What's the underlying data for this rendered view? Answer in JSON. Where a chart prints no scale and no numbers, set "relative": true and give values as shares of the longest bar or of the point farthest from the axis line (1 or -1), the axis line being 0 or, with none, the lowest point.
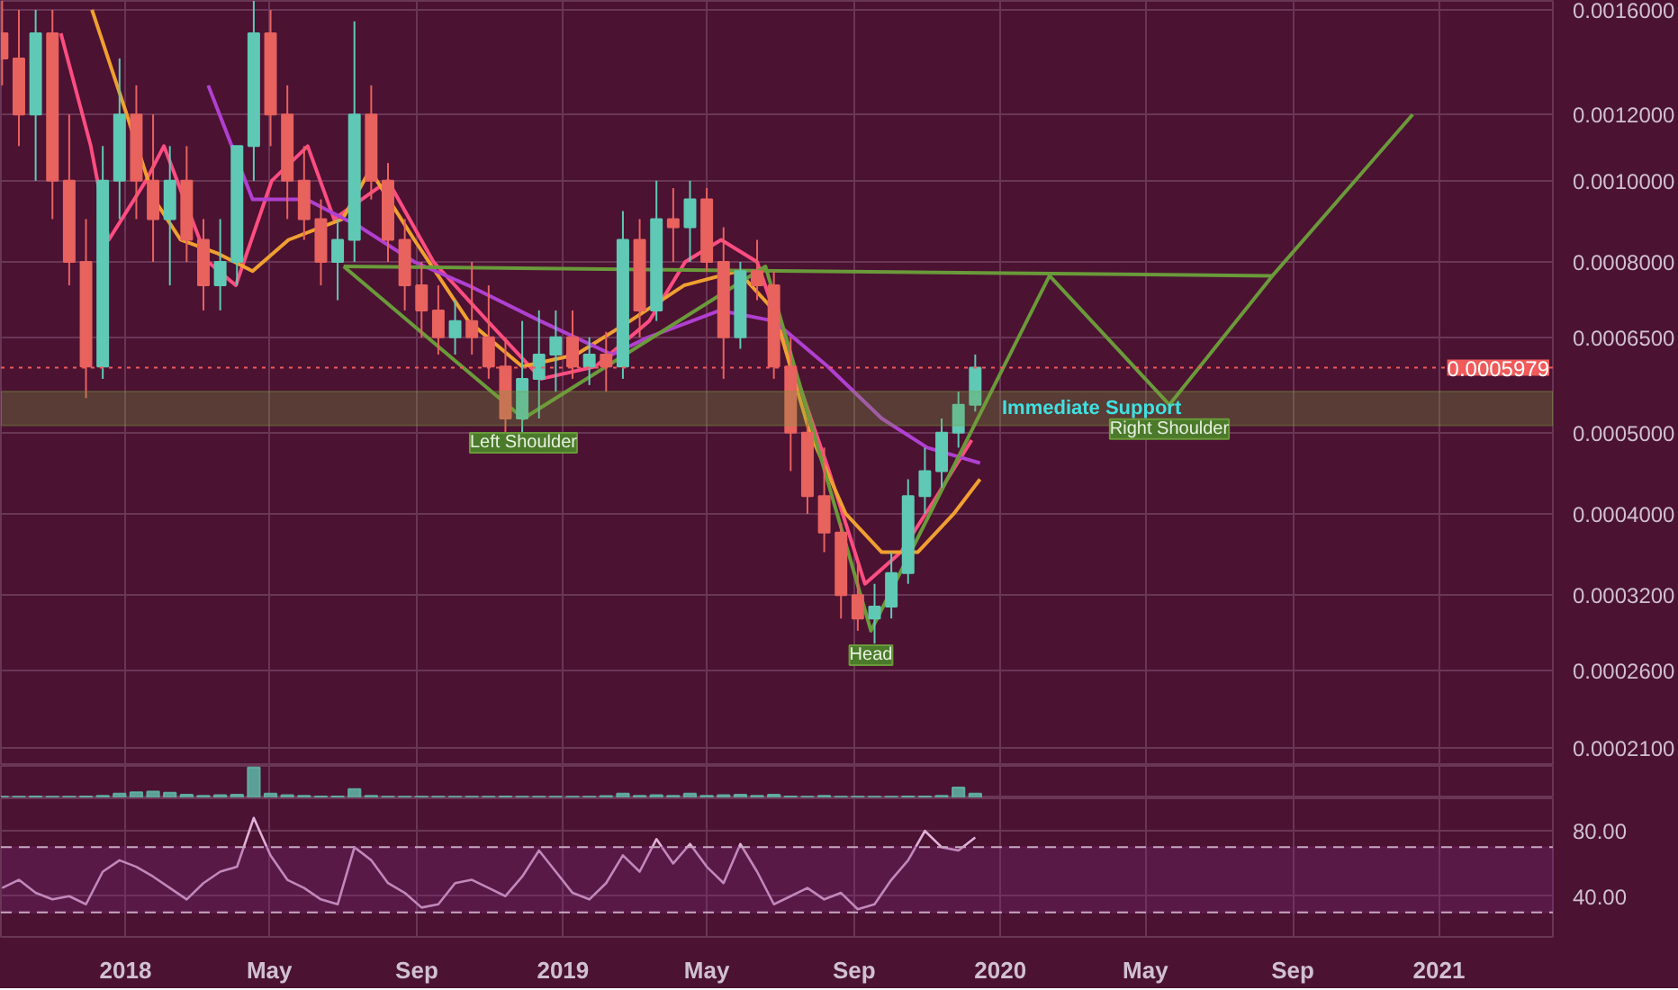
{
  "chart_data": [
    {
      "type": "candlestick",
      "log": true,
      "grid": true,
      "tick_labels": "y",
      "xlim": [
        "2017-09-19",
        "2021-04-06"
      ],
      "xticks": [
        {
          "value": "2018-01-01",
          "label": null
        },
        {
          "value": "2018-05-01",
          "label": null
        },
        {
          "value": "2018-09-01",
          "label": null
        },
        {
          "value": "2019-01-01",
          "label": null
        },
        {
          "value": "2019-05-01",
          "label": null
        },
        {
          "value": "2019-09-01",
          "label": null
        },
        {
          "value": "2020-01-01",
          "label": null
        },
        {
          "value": "2020-05-01",
          "label": null
        },
        {
          "value": "2020-09-01",
          "label": null
        },
        {
          "value": "2021-01-01",
          "label": null
        }
      ],
      "ylim": [
        0.0002,
        0.00164
      ],
      "yticks": [
        {
          "value": 0.0016,
          "label": "0.0016000"
        },
        {
          "value": 0.0012,
          "label": "0.0012000"
        },
        {
          "value": 0.001,
          "label": "0.0010000"
        },
        {
          "value": 0.0008,
          "label": "0.0008000"
        },
        {
          "value": 0.00065,
          "label": "0.0006500"
        },
        {
          "value": 0.0005,
          "label": "0.0005000"
        },
        {
          "value": 0.0004,
          "label": "0.0004000"
        },
        {
          "value": 0.00032,
          "label": "0.0003200"
        },
        {
          "value": 0.00026,
          "label": "0.0002600"
        },
        {
          "value": 0.00021,
          "label": "0.0002100"
        }
      ],
      "x": [
        "2017-09-20",
        "2017-10-04",
        "2017-10-18",
        "2017-11-01",
        "2017-11-15",
        "2017-11-29",
        "2017-12-13",
        "2017-12-27",
        "2018-01-10",
        "2018-01-24",
        "2018-02-07",
        "2018-02-21",
        "2018-03-07",
        "2018-03-21",
        "2018-04-04",
        "2018-04-18",
        "2018-05-02",
        "2018-05-16",
        "2018-05-30",
        "2018-06-13",
        "2018-06-27",
        "2018-07-11",
        "2018-07-25",
        "2018-08-08",
        "2018-08-22",
        "2018-09-05",
        "2018-09-19",
        "2018-10-03",
        "2018-10-17",
        "2018-10-31",
        "2018-11-14",
        "2018-11-28",
        "2018-12-12",
        "2018-12-26",
        "2019-01-09",
        "2019-01-23",
        "2019-02-06",
        "2019-02-20",
        "2019-03-06",
        "2019-03-20",
        "2019-04-03",
        "2019-04-17",
        "2019-05-01",
        "2019-05-15",
        "2019-05-29",
        "2019-06-12",
        "2019-06-26",
        "2019-07-10",
        "2019-07-24",
        "2019-08-07",
        "2019-08-21",
        "2019-09-04",
        "2019-09-18",
        "2019-10-02",
        "2019-10-16",
        "2019-10-30",
        "2019-11-13",
        "2019-11-27",
        "2019-12-11"
      ],
      "ohlc": [
        [
          0.0015,
          0.0017,
          0.0013,
          0.0014
        ],
        [
          0.0014,
          0.0016,
          0.0011,
          0.0012
        ],
        [
          0.0012,
          0.0016,
          0.001,
          0.0015
        ],
        [
          0.0015,
          0.0016,
          0.0009,
          0.001
        ],
        [
          0.001,
          0.0012,
          0.00075,
          0.0008
        ],
        [
          0.0008,
          0.0009,
          0.00055,
          0.0006
        ],
        [
          0.0006,
          0.0011,
          0.00058,
          0.001
        ],
        [
          0.001,
          0.0014,
          0.0009,
          0.0012
        ],
        [
          0.0012,
          0.0013,
          0.0009,
          0.001
        ],
        [
          0.001,
          0.0012,
          0.0008,
          0.0009
        ],
        [
          0.0009,
          0.0011,
          0.00075,
          0.001
        ],
        [
          0.001,
          0.0011,
          0.0008,
          0.00085
        ],
        [
          0.00085,
          0.0009,
          0.0007,
          0.00075
        ],
        [
          0.00075,
          0.0009,
          0.0007,
          0.0008
        ],
        [
          0.0008,
          0.0011,
          0.00075,
          0.0011
        ],
        [
          0.0011,
          0.0017,
          0.001,
          0.0015
        ],
        [
          0.0015,
          0.0016,
          0.0011,
          0.0012
        ],
        [
          0.0012,
          0.0013,
          0.0009,
          0.001
        ],
        [
          0.001,
          0.0011,
          0.00085,
          0.0009
        ],
        [
          0.0009,
          0.00095,
          0.00075,
          0.0008
        ],
        [
          0.0008,
          0.0009,
          0.00072,
          0.00085
        ],
        [
          0.00085,
          0.00155,
          0.0008,
          0.0012
        ],
        [
          0.0012,
          0.0013,
          0.00095,
          0.001
        ],
        [
          0.001,
          0.00105,
          0.0008,
          0.00085
        ],
        [
          0.00085,
          0.0009,
          0.0007,
          0.00075
        ],
        [
          0.00075,
          0.0008,
          0.00065,
          0.0007
        ],
        [
          0.0007,
          0.00075,
          0.00062,
          0.00065
        ],
        [
          0.00065,
          0.00072,
          0.00062,
          0.00068
        ],
        [
          0.00068,
          0.0008,
          0.00062,
          0.00065
        ],
        [
          0.00065,
          0.00075,
          0.00058,
          0.0006
        ],
        [
          0.0006,
          0.00065,
          0.0005,
          0.00052
        ],
        [
          0.00052,
          0.00068,
          0.0005,
          0.00058
        ],
        [
          0.00058,
          0.0007,
          0.00052,
          0.00062
        ],
        [
          0.00062,
          0.0007,
          0.00056,
          0.00065
        ],
        [
          0.00065,
          0.0007,
          0.00058,
          0.0006
        ],
        [
          0.0006,
          0.00065,
          0.00057,
          0.00062
        ],
        [
          0.00062,
          0.00066,
          0.00056,
          0.0006
        ],
        [
          0.0006,
          0.00092,
          0.00058,
          0.00085
        ],
        [
          0.00085,
          0.0009,
          0.00065,
          0.0007
        ],
        [
          0.0007,
          0.001,
          0.00068,
          0.0009
        ],
        [
          0.0009,
          0.00098,
          0.0008,
          0.00088
        ],
        [
          0.00088,
          0.001,
          0.0008,
          0.00095
        ],
        [
          0.00095,
          0.00098,
          0.00078,
          0.0008
        ],
        [
          0.0008,
          0.00088,
          0.00058,
          0.00065
        ],
        [
          0.00065,
          0.0008,
          0.00063,
          0.00078
        ],
        [
          0.00078,
          0.00085,
          0.00072,
          0.00075
        ],
        [
          0.00075,
          0.00078,
          0.00058,
          0.0006
        ],
        [
          0.0006,
          0.00065,
          0.00045,
          0.0005
        ],
        [
          0.0005,
          0.00052,
          0.0004,
          0.00042
        ],
        [
          0.00042,
          0.00048,
          0.00036,
          0.00038
        ],
        [
          0.00038,
          0.00039,
          0.0003,
          0.00032
        ],
        [
          0.00032,
          0.00035,
          0.00029,
          0.0003
        ],
        [
          0.0003,
          0.00033,
          0.00028,
          0.00031
        ],
        [
          0.00031,
          0.00036,
          0.0003,
          0.00034
        ],
        [
          0.00034,
          0.00044,
          0.00033,
          0.00042
        ],
        [
          0.00042,
          0.00048,
          0.0004,
          0.00045
        ],
        [
          0.00045,
          0.00052,
          0.00043,
          0.0005
        ],
        [
          0.0005,
          0.00056,
          0.00048,
          0.00054
        ],
        [
          0.00054,
          0.00062,
          0.00053,
          0.0005979
        ]
      ],
      "colors": [
        "#e8625e",
        "#e8625e",
        "#5fc9b5",
        "#e8625e",
        "#e8625e",
        "#e8625e",
        "#5fc9b5",
        "#5fc9b5",
        "#e8625e",
        "#e8625e",
        "#5fc9b5",
        "#e8625e",
        "#e8625e",
        "#5fc9b5",
        "#5fc9b5",
        "#5fc9b5",
        "#e8625e",
        "#e8625e",
        "#e8625e",
        "#e8625e",
        "#5fc9b5",
        "#5fc9b5",
        "#e8625e",
        "#e8625e",
        "#e8625e",
        "#e8625e",
        "#e8625e",
        "#5fc9b5",
        "#e8625e",
        "#e8625e",
        "#e8625e",
        "#5fc9b5",
        "#5fc9b5",
        "#5fc9b5",
        "#e8625e",
        "#5fc9b5",
        "#e8625e",
        "#5fc9b5",
        "#e8625e",
        "#5fc9b5",
        "#e8625e",
        "#5fc9b5",
        "#e8625e",
        "#e8625e",
        "#5fc9b5",
        "#e8625e",
        "#e8625e",
        "#e8625e",
        "#e8625e",
        "#e8625e",
        "#e8625e",
        "#e8625e",
        "#5fc9b5",
        "#5fc9b5",
        "#5fc9b5",
        "#5fc9b5",
        "#5fc9b5",
        "#5fc9b5",
        "#5fc9b5"
      ],
      "series": [
        {
          "type": "line",
          "color": "#ff4d80",
          "x": [
            "2017-11-08",
            "2017-12-03",
            "2017-12-18",
            "2018-01-18",
            "2018-02-02",
            "2018-03-11",
            "2018-04-03",
            "2018-05-03",
            "2018-06-02",
            "2018-06-24",
            "2018-08-08",
            "2018-09-15",
            "2018-10-30",
            "2018-12-14",
            "2019-01-28",
            "2019-03-14",
            "2019-04-13",
            "2019-05-13",
            "2019-06-12",
            "2019-07-12",
            "2019-08-11",
            "2019-09-10",
            "2019-10-10",
            "2019-11-09",
            "2019-12-08"
          ],
          "values": [
            0.0015,
            0.0011,
            0.00085,
            0.001,
            0.0011,
            0.0008,
            0.00075,
            0.001,
            0.0011,
            0.0009,
            0.001,
            0.0008,
            0.00068,
            0.00058,
            0.0006,
            0.00068,
            0.0008,
            0.00085,
            0.0008,
            0.0006,
            0.00045,
            0.00033,
            0.00036,
            0.00042,
            0.00049
          ]
        },
        {
          "type": "line",
          "color": "#f0a030",
          "x": [
            "2017-12-04",
            "2018-01-02",
            "2018-01-25",
            "2018-02-16",
            "2018-03-18",
            "2018-04-17",
            "2018-05-17",
            "2018-07-01",
            "2018-07-24",
            "2018-08-30",
            "2018-10-14",
            "2018-11-28",
            "2019-01-12",
            "2019-02-26",
            "2019-04-12",
            "2019-05-27",
            "2019-06-26",
            "2019-07-26",
            "2019-08-25",
            "2019-09-24",
            "2019-10-24",
            "2019-11-23",
            "2019-12-15"
          ],
          "values": [
            0.0016,
            0.0012,
            0.00095,
            0.00085,
            0.00082,
            0.00078,
            0.00085,
            0.0009,
            0.00103,
            0.00085,
            0.00068,
            0.0006,
            0.00062,
            0.00068,
            0.00075,
            0.00078,
            0.0007,
            0.0005,
            0.0004,
            0.00036,
            0.00036,
            0.0004,
            0.00044
          ]
        },
        {
          "type": "line",
          "color": "#b040d0",
          "x": [
            "2018-03-11",
            "2018-04-17",
            "2018-06-01",
            "2018-07-16",
            "2018-08-30",
            "2018-10-14",
            "2018-12-13",
            "2019-02-11",
            "2019-03-13",
            "2019-05-12",
            "2019-06-26",
            "2019-08-10",
            "2019-09-24",
            "2019-11-01",
            "2019-12-15"
          ],
          "values": [
            0.0013,
            0.00095,
            0.00095,
            0.00088,
            0.0008,
            0.00075,
            0.00068,
            0.00062,
            0.00065,
            0.0007,
            0.00068,
            0.0006,
            0.00052,
            0.00048,
            0.00046
          ]
        },
        {
          "type": "line",
          "color": "#6a9a3a",
          "x": [
            "2018-07-02",
            "2018-11-29",
            "2019-06-19",
            "2019-09-15",
            "2020-02-11",
            "2020-05-21",
            "2020-08-15",
            "2020-12-10"
          ],
          "values": [
            0.00079,
            0.00052,
            0.00079,
            0.00029,
            0.00077,
            0.00054,
            0.00077,
            0.0012
          ]
        },
        {
          "type": "line",
          "color": "#6a9a3a",
          "x": [
            "2018-07-02",
            "2020-08-15"
          ],
          "values": [
            0.00079,
            0.00077
          ]
        }
      ],
      "ref_lines": [
        {
          "axis": "y",
          "value": 0.0005979,
          "label": "0.0005979",
          "color": "#f05a5a",
          "line_style": "dotted"
        }
      ],
      "bands": [
        {
          "axis": "y",
          "from": 0.00051,
          "to": 0.00056,
          "color": "#7aa040",
          "label": "Immediate Support"
        }
      ],
      "annotations": [
        {
          "text": "Left Shoulder",
          "x": "2018-11-29",
          "y": 0.00052
        },
        {
          "text": "Head",
          "x": "2019-09-15",
          "y": 0.00029
        },
        {
          "text": "Right Shoulder",
          "x": "2020-05-21",
          "y": 0.00054
        }
      ]
    },
    {
      "type": "bar",
      "relative": true,
      "grid": "x",
      "tick_labels": false,
      "color": "#5fb8a8",
      "xlim": [
        "2017-09-19",
        "2021-04-06"
      ],
      "xticks": [
        {
          "value": "2018-01-01",
          "label": null
        },
        {
          "value": "2018-05-01",
          "label": null
        },
        {
          "value": "2018-09-01",
          "label": null
        },
        {
          "value": "2019-01-01",
          "label": null
        },
        {
          "value": "2019-05-01",
          "label": null
        },
        {
          "value": "2019-09-01",
          "label": null
        },
        {
          "value": "2020-01-01",
          "label": null
        },
        {
          "value": "2020-05-01",
          "label": null
        },
        {
          "value": "2020-09-01",
          "label": null
        },
        {
          "value": "2021-01-01",
          "label": null
        }
      ],
      "x": [
        "2017-09-20",
        "2017-10-04",
        "2017-10-18",
        "2017-11-01",
        "2017-11-15",
        "2017-11-29",
        "2017-12-13",
        "2017-12-27",
        "2018-01-10",
        "2018-01-24",
        "2018-02-07",
        "2018-02-21",
        "2018-03-07",
        "2018-03-21",
        "2018-04-04",
        "2018-04-18",
        "2018-05-02",
        "2018-05-16",
        "2018-05-30",
        "2018-06-13",
        "2018-06-27",
        "2018-07-11",
        "2018-07-25",
        "2018-08-08",
        "2018-08-22",
        "2018-09-05",
        "2018-09-19",
        "2018-10-03",
        "2018-10-17",
        "2018-10-31",
        "2018-11-14",
        "2018-11-28",
        "2018-12-12",
        "2018-12-26",
        "2019-01-09",
        "2019-01-23",
        "2019-02-06",
        "2019-02-20",
        "2019-03-06",
        "2019-03-20",
        "2019-04-03",
        "2019-04-17",
        "2019-05-01",
        "2019-05-15",
        "2019-05-29",
        "2019-06-12",
        "2019-06-26",
        "2019-07-10",
        "2019-07-24",
        "2019-08-07",
        "2019-08-21",
        "2019-09-04",
        "2019-09-18",
        "2019-10-02",
        "2019-10-16",
        "2019-10-30",
        "2019-11-13",
        "2019-11-27",
        "2019-12-11"
      ],
      "values": [
        0.05,
        0.05,
        0.06,
        0.05,
        0.05,
        0.06,
        0.08,
        0.15,
        0.2,
        0.22,
        0.18,
        0.12,
        0.08,
        0.1,
        0.12,
        1,
        0.15,
        0.1,
        0.08,
        0.06,
        0.06,
        0.3,
        0.08,
        0.05,
        0.05,
        0.05,
        0.05,
        0.05,
        0.05,
        0.05,
        0.06,
        0.05,
        0.05,
        0.05,
        0.05,
        0.05,
        0.07,
        0.15,
        0.08,
        0.1,
        0.08,
        0.15,
        0.08,
        0.1,
        0.12,
        0.08,
        0.12,
        0.06,
        0.05,
        0.08,
        0.05,
        0.05,
        0.05,
        0.05,
        0.06,
        0.06,
        0.08,
        0.35,
        0.15
      ]
    },
    {
      "type": "line",
      "grid": true,
      "color": "#e0b0d8",
      "xlim": [
        "2017-09-19",
        "2021-04-06"
      ],
      "xticks": [
        {
          "value": "2018-01-01",
          "label": "2018"
        },
        {
          "value": "2018-05-01",
          "label": "May"
        },
        {
          "value": "2018-09-01",
          "label": "Sep"
        },
        {
          "value": "2019-01-01",
          "label": "2019"
        },
        {
          "value": "2019-05-01",
          "label": "May"
        },
        {
          "value": "2019-09-01",
          "label": "Sep"
        },
        {
          "value": "2020-01-01",
          "label": "2020"
        },
        {
          "value": "2020-05-01",
          "label": "May"
        },
        {
          "value": "2020-09-01",
          "label": "Sep"
        },
        {
          "value": "2021-01-01",
          "label": "2021"
        }
      ],
      "ylim": [
        15,
        100
      ],
      "yticks": [
        {
          "value": 80,
          "label": "80.00"
        },
        {
          "value": 40,
          "label": "40.00"
        }
      ],
      "x": [
        "2017-09-20",
        "2017-10-04",
        "2017-10-18",
        "2017-11-01",
        "2017-11-15",
        "2017-11-29",
        "2017-12-13",
        "2017-12-27",
        "2018-01-10",
        "2018-01-24",
        "2018-02-07",
        "2018-02-21",
        "2018-03-07",
        "2018-03-21",
        "2018-04-04",
        "2018-04-18",
        "2018-05-02",
        "2018-05-16",
        "2018-05-30",
        "2018-06-13",
        "2018-06-27",
        "2018-07-11",
        "2018-07-25",
        "2018-08-08",
        "2018-08-22",
        "2018-09-05",
        "2018-09-19",
        "2018-10-03",
        "2018-10-17",
        "2018-10-31",
        "2018-11-14",
        "2018-11-28",
        "2018-12-12",
        "2018-12-26",
        "2019-01-09",
        "2019-01-23",
        "2019-02-06",
        "2019-02-20",
        "2019-03-06",
        "2019-03-20",
        "2019-04-03",
        "2019-04-17",
        "2019-05-01",
        "2019-05-15",
        "2019-05-29",
        "2019-06-12",
        "2019-06-26",
        "2019-07-10",
        "2019-07-24",
        "2019-08-07",
        "2019-08-21",
        "2019-09-04",
        "2019-09-18",
        "2019-10-02",
        "2019-10-16",
        "2019-10-30",
        "2019-11-13",
        "2019-11-27",
        "2019-12-11"
      ],
      "values": [
        45,
        50,
        42,
        38,
        40,
        35,
        55,
        62,
        58,
        52,
        45,
        38,
        48,
        55,
        58,
        88,
        65,
        50,
        45,
        38,
        35,
        70,
        62,
        48,
        42,
        33,
        35,
        48,
        50,
        45,
        40,
        52,
        68,
        55,
        42,
        38,
        48,
        65,
        55,
        75,
        60,
        72,
        58,
        48,
        72,
        55,
        35,
        40,
        45,
        38,
        42,
        32,
        35,
        50,
        62,
        80,
        70,
        68,
        76
      ],
      "ref_lines": [
        {
          "axis": "y",
          "value": 70,
          "color": "#c8a8c0",
          "line_style": "dashed"
        },
        {
          "axis": "y",
          "value": 30,
          "color": "#c8a8c0",
          "line_style": "dashed"
        }
      ],
      "bands": [
        {
          "axis": "y",
          "from": 30,
          "to": 70,
          "color": "#7a2a78"
        }
      ]
    }
  ]
}
